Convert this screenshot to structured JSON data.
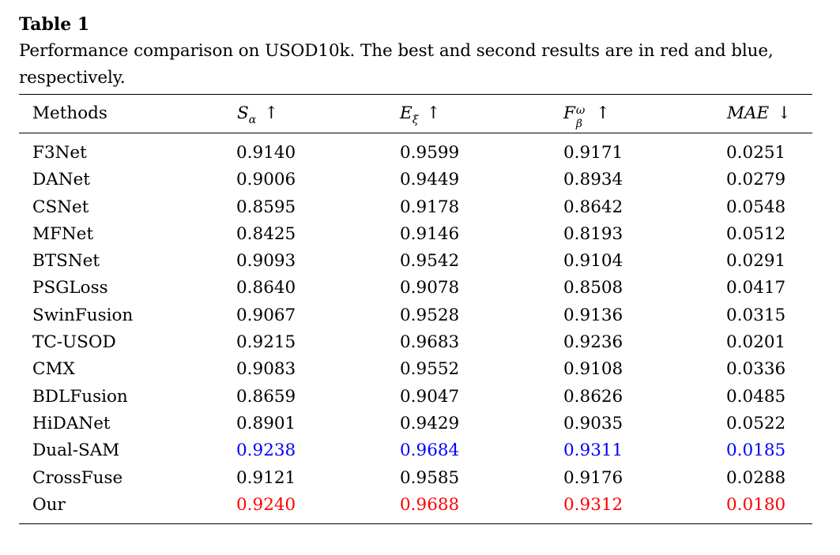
{
  "caption": {
    "title": "Table 1",
    "line1": "Performance comparison on USOD10k. The best and second results are in red and blue,",
    "line2": "respectively."
  },
  "header": {
    "methods": "Methods",
    "col1": {
      "symbol": "S",
      "sub": "α",
      "arrow": "↑"
    },
    "col2": {
      "symbol": "E",
      "sub": "ξ",
      "arrow": "↑"
    },
    "col3": {
      "symbol": "F",
      "sup": "ω",
      "sub": "β",
      "arrow": "↑"
    },
    "col4": {
      "symbol": "MAE",
      "arrow": "↓"
    }
  },
  "highlight_colors": {
    "best": "#ff0000",
    "second": "#0000ff"
  },
  "rows": [
    {
      "method": "F3Net",
      "s": "0.9140",
      "e": "0.9599",
      "f": "0.9171",
      "mae": "0.0251",
      "style": "normal"
    },
    {
      "method": "DANet",
      "s": "0.9006",
      "e": "0.9449",
      "f": "0.8934",
      "mae": "0.0279",
      "style": "normal"
    },
    {
      "method": "CSNet",
      "s": "0.8595",
      "e": "0.9178",
      "f": "0.8642",
      "mae": "0.0548",
      "style": "normal"
    },
    {
      "method": "MFNet",
      "s": "0.8425",
      "e": "0.9146",
      "f": "0.8193",
      "mae": "0.0512",
      "style": "normal"
    },
    {
      "method": "BTSNet",
      "s": "0.9093",
      "e": "0.9542",
      "f": "0.9104",
      "mae": "0.0291",
      "style": "normal"
    },
    {
      "method": "PSGLoss",
      "s": "0.8640",
      "e": "0.9078",
      "f": "0.8508",
      "mae": "0.0417",
      "style": "normal"
    },
    {
      "method": "SwinFusion",
      "s": "0.9067",
      "e": "0.9528",
      "f": "0.9136",
      "mae": "0.0315",
      "style": "normal"
    },
    {
      "method": "TC-USOD",
      "s": "0.9215",
      "e": "0.9683",
      "f": "0.9236",
      "mae": "0.0201",
      "style": "normal"
    },
    {
      "method": "CMX",
      "s": "0.9083",
      "e": "0.9552",
      "f": "0.9108",
      "mae": "0.0336",
      "style": "normal"
    },
    {
      "method": "BDLFusion",
      "s": "0.8659",
      "e": "0.9047",
      "f": "0.8626",
      "mae": "0.0485",
      "style": "normal"
    },
    {
      "method": "HiDANet",
      "s": "0.8901",
      "e": "0.9429",
      "f": "0.9035",
      "mae": "0.0522",
      "style": "normal"
    },
    {
      "method": "Dual-SAM",
      "s": "0.9238",
      "e": "0.9684",
      "f": "0.9311",
      "mae": "0.0185",
      "style": "second"
    },
    {
      "method": "CrossFuse",
      "s": "0.9121",
      "e": "0.9585",
      "f": "0.9176",
      "mae": "0.0288",
      "style": "normal"
    },
    {
      "method": "Our",
      "s": "0.9240",
      "e": "0.9688",
      "f": "0.9312",
      "mae": "0.0180",
      "style": "best"
    }
  ]
}
